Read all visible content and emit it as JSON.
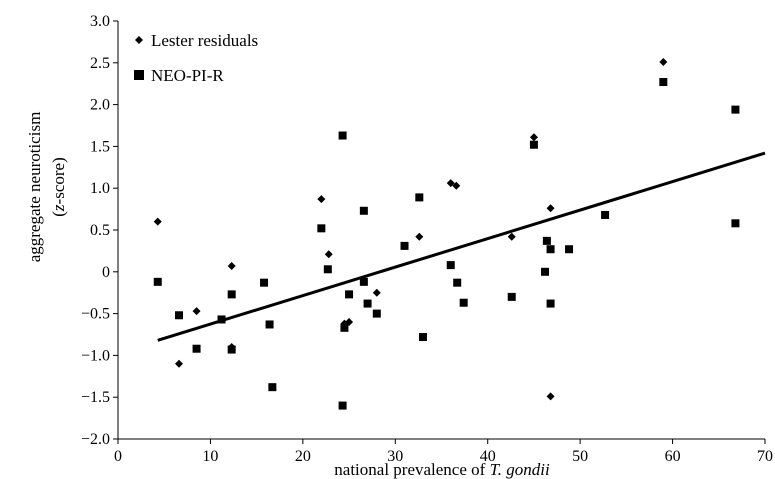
{
  "chart_data": {
    "type": "scatter",
    "title": "",
    "xlabel_prefix": "national prevalence of ",
    "xlabel_italic": "T. gondii",
    "ylabel_line1": "aggregate neuroticism",
    "ylabel_line2_open": "(",
    "ylabel_line2_italic": "z",
    "ylabel_line2_rest": "-score)",
    "xlim": [
      0,
      70
    ],
    "ylim": [
      -2.0,
      3.0
    ],
    "xticks": [
      "0",
      "10",
      "20",
      "30",
      "40",
      "50",
      "60",
      "70"
    ],
    "yticks": [
      "3.0",
      "2.5",
      "2.0",
      "1.5",
      "1.0",
      "0.5",
      "0",
      "-0.5",
      "-1.0",
      "-1.5",
      "-2.0"
    ],
    "grid": false,
    "legend_position": "top-left",
    "series": [
      {
        "name": "Lester residuals",
        "marker": "diamond",
        "points": [
          [
            4.3,
            0.6
          ],
          [
            6.6,
            -1.1
          ],
          [
            8.5,
            -0.47
          ],
          [
            12.3,
            0.07
          ],
          [
            12.3,
            -0.9
          ],
          [
            22.0,
            0.87
          ],
          [
            22.8,
            0.21
          ],
          [
            24.5,
            -0.62
          ],
          [
            25.0,
            -0.6
          ],
          [
            28.0,
            -0.25
          ],
          [
            32.6,
            0.42
          ],
          [
            36.0,
            1.06
          ],
          [
            36.6,
            1.03
          ],
          [
            42.6,
            0.42
          ],
          [
            45.0,
            1.61
          ],
          [
            46.8,
            0.76
          ],
          [
            46.8,
            -1.49
          ],
          [
            59.0,
            2.51
          ]
        ]
      },
      {
        "name": "NEO-PI-R",
        "marker": "square",
        "points": [
          [
            4.3,
            -0.12
          ],
          [
            6.6,
            -0.52
          ],
          [
            8.5,
            -0.92
          ],
          [
            11.2,
            -0.57
          ],
          [
            12.3,
            -0.27
          ],
          [
            12.3,
            -0.93
          ],
          [
            15.8,
            -0.13
          ],
          [
            16.4,
            -0.63
          ],
          [
            16.7,
            -1.38
          ],
          [
            22.0,
            0.52
          ],
          [
            22.7,
            0.03
          ],
          [
            24.3,
            1.63
          ],
          [
            24.3,
            -1.6
          ],
          [
            24.5,
            -0.67
          ],
          [
            25.0,
            -0.27
          ],
          [
            26.6,
            -0.12
          ],
          [
            26.6,
            0.73
          ],
          [
            27.0,
            -0.38
          ],
          [
            28.0,
            -0.5
          ],
          [
            31.0,
            0.31
          ],
          [
            32.6,
            0.89
          ],
          [
            33.0,
            -0.78
          ],
          [
            36.0,
            0.08
          ],
          [
            36.7,
            -0.13
          ],
          [
            37.4,
            -0.37
          ],
          [
            42.6,
            -0.3
          ],
          [
            45.0,
            1.52
          ],
          [
            46.2,
            0.0
          ],
          [
            46.4,
            0.37
          ],
          [
            46.8,
            0.27
          ],
          [
            46.8,
            -0.38
          ],
          [
            48.8,
            0.27
          ],
          [
            52.7,
            0.68
          ],
          [
            59.0,
            2.27
          ],
          [
            66.8,
            1.94
          ],
          [
            66.8,
            0.58
          ]
        ]
      }
    ],
    "trendline": {
      "x": [
        4.3,
        70
      ],
      "y": [
        -0.82,
        1.42
      ]
    }
  }
}
